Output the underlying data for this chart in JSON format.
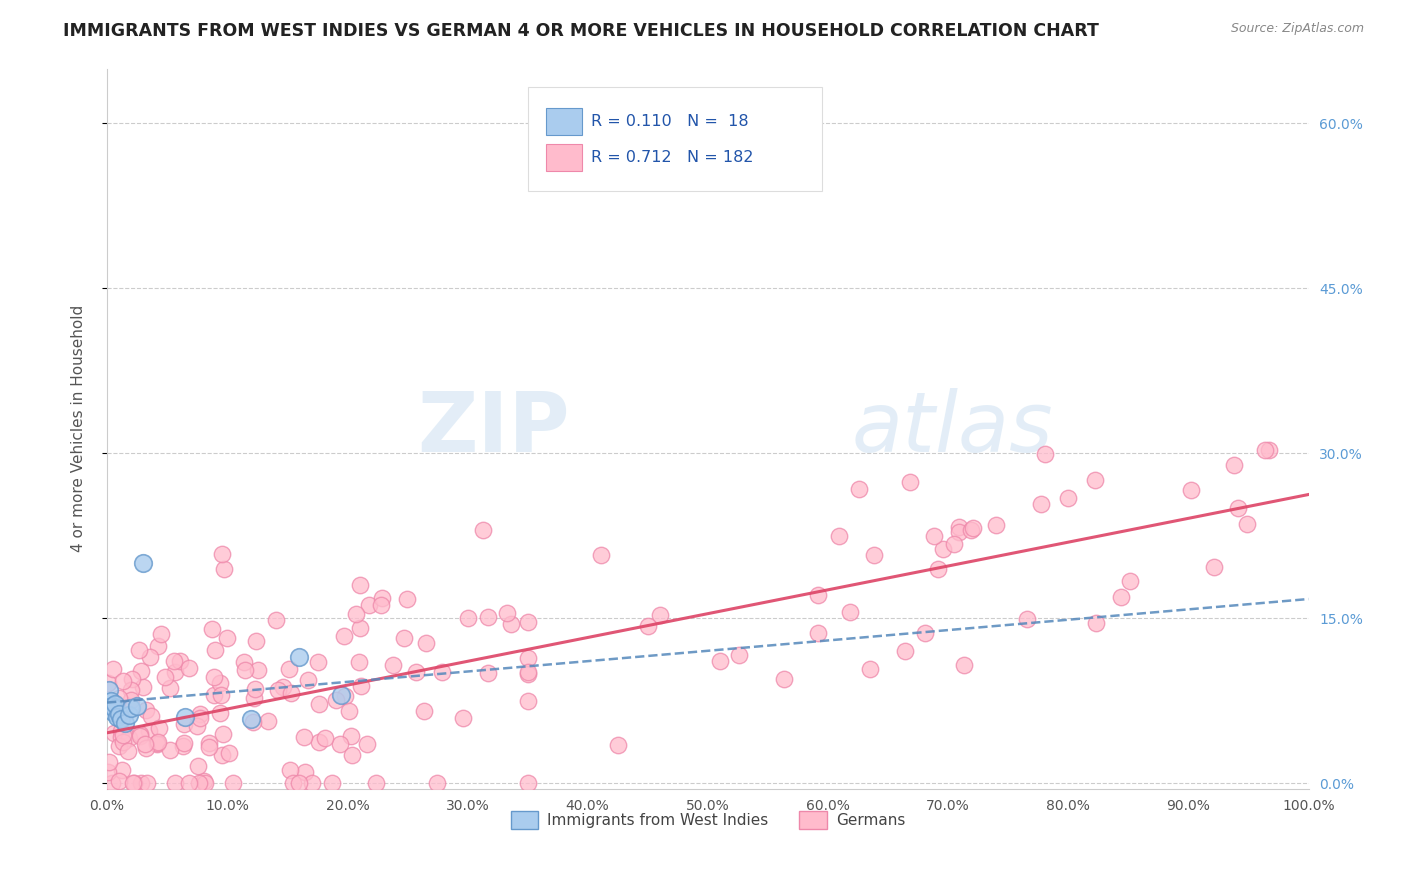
{
  "title": "IMMIGRANTS FROM WEST INDIES VS GERMAN 4 OR MORE VEHICLES IN HOUSEHOLD CORRELATION CHART",
  "source": "Source: ZipAtlas.com",
  "ylabel": "4 or more Vehicles in Household",
  "legend1_label": "Immigrants from West Indies",
  "legend2_label": "Germans",
  "r1": 0.11,
  "n1": 18,
  "r2": 0.712,
  "n2": 182,
  "color1_face": "#aaccee",
  "color1_edge": "#6699cc",
  "color2_face": "#ffbbcc",
  "color2_edge": "#ee88aa",
  "line1_color": "#5588bb",
  "line2_color": "#dd4466",
  "watermark_zip": "ZIP",
  "watermark_atlas": "atlas",
  "xlim": [
    0.0,
    1.0
  ],
  "ylim": [
    -0.005,
    0.65
  ],
  "xtick_positions": [
    0.0,
    0.1,
    0.2,
    0.3,
    0.4,
    0.5,
    0.6,
    0.7,
    0.8,
    0.9,
    1.0
  ],
  "ytick_positions": [
    0.0,
    0.15,
    0.3,
    0.45,
    0.6
  ],
  "background_color": "#ffffff",
  "grid_color": "#cccccc",
  "title_color": "#222222",
  "source_color": "#888888",
  "ylabel_color": "#555555",
  "tick_color": "#555555",
  "right_tick_color": "#5b9bd5"
}
